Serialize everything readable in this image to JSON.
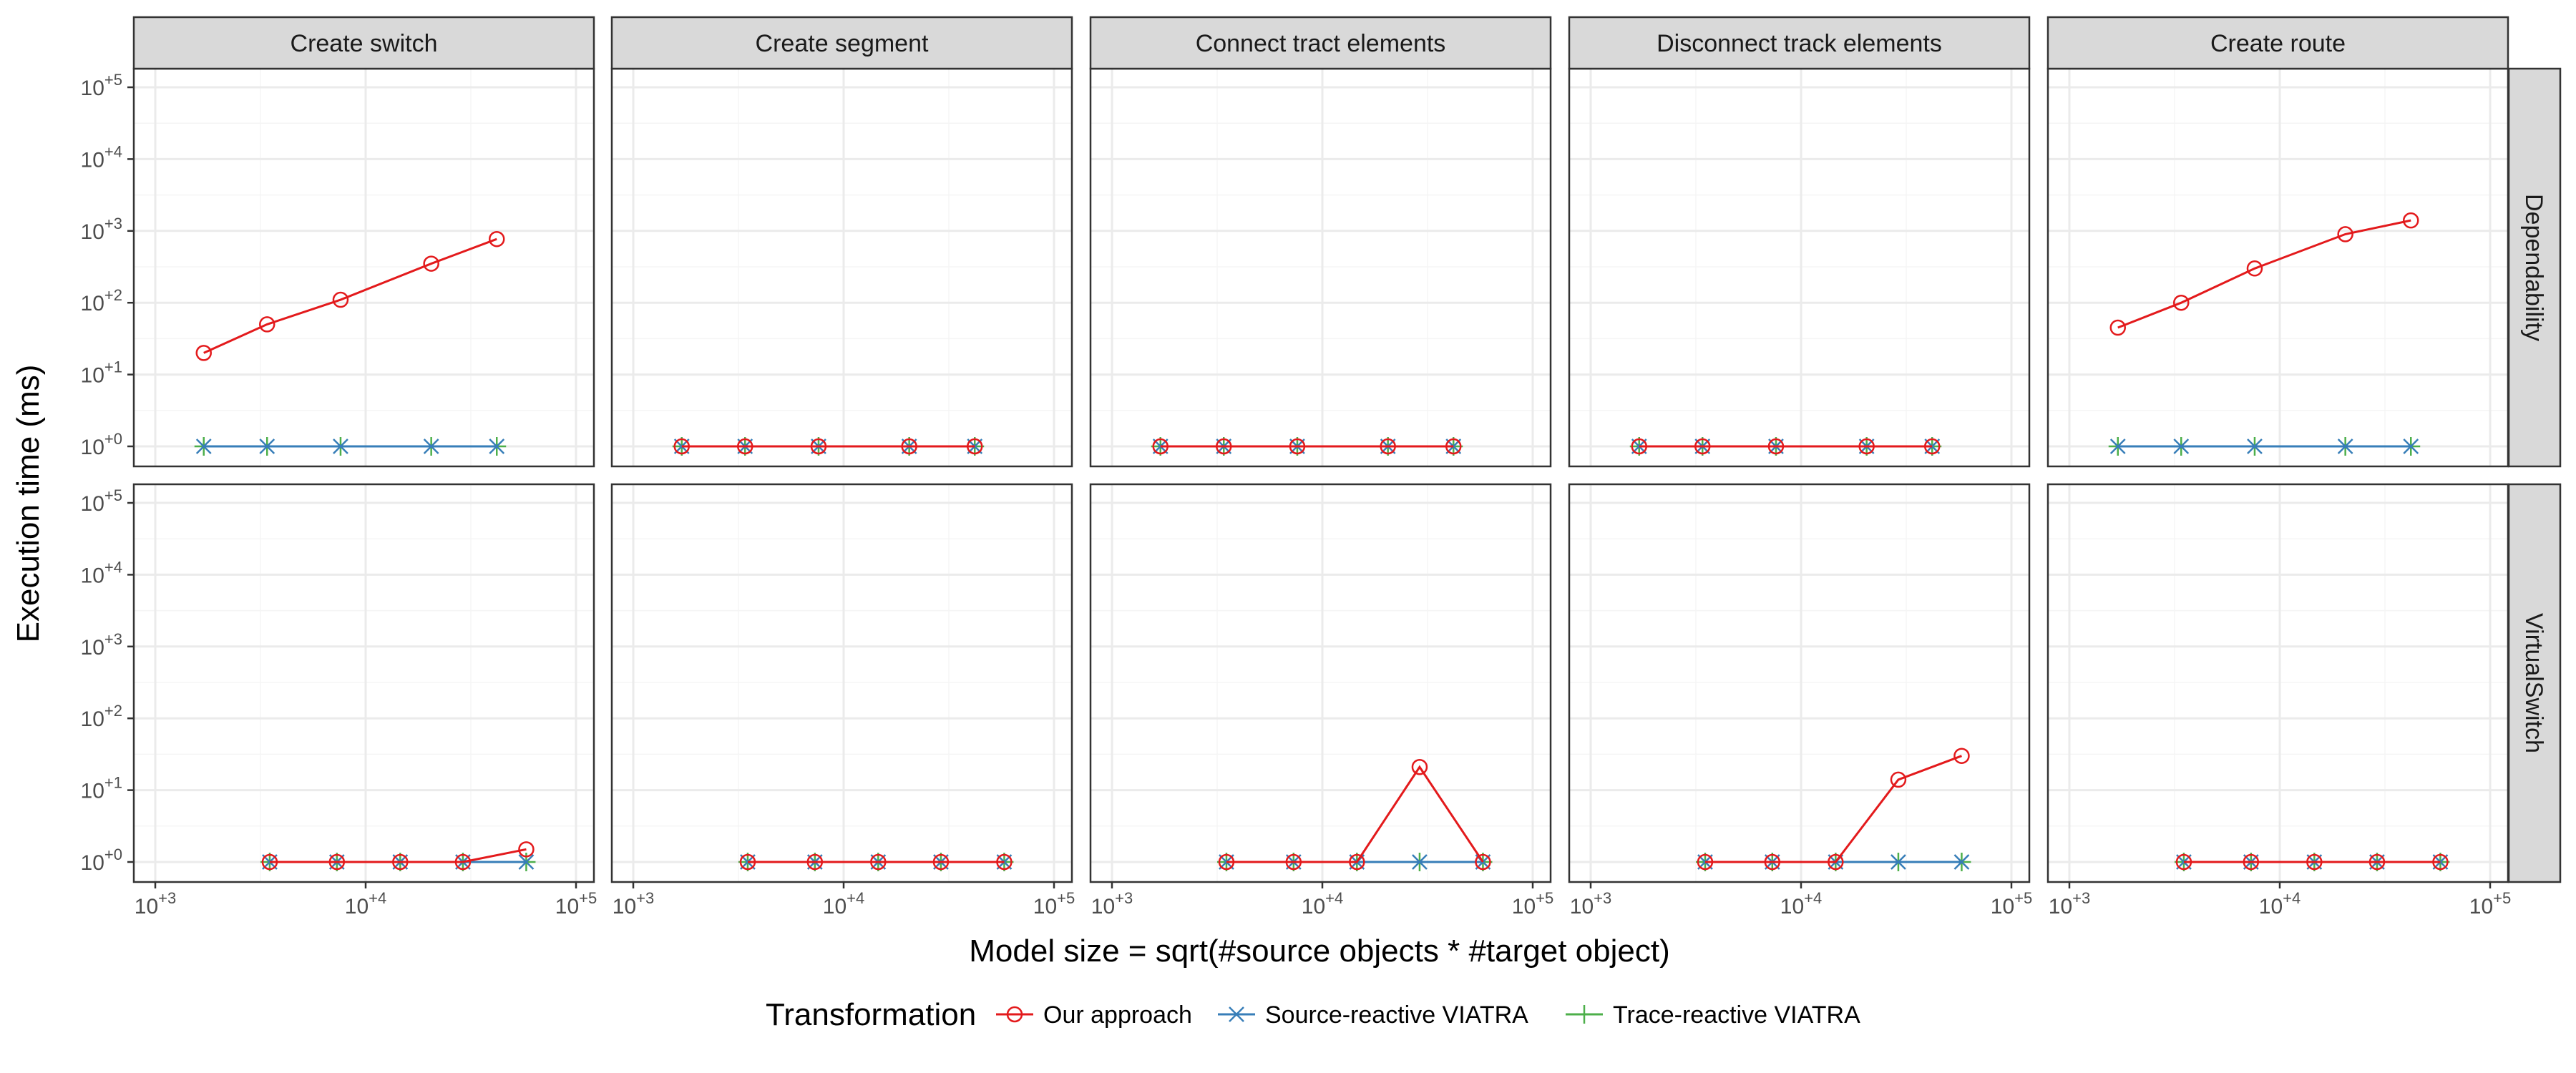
{
  "figure": {
    "y_axis_title": "Execution time (ms)",
    "x_axis_title": "Model size = sqrt(#source objects * #target object)",
    "legend_title": "Transformation"
  },
  "colors": {
    "our_approach": "#e31a1c",
    "source_reactive": "#377eb8",
    "trace_reactive": "#4daf4a",
    "panel_border": "#333333",
    "strip_fill": "#d9d9d9",
    "grid_major": "#ebebeb",
    "grid_minor": "#f5f5f5"
  },
  "chart_data": {
    "type": "line",
    "facet_columns": [
      "Create switch",
      "Create segment",
      "Connect tract elements",
      "Disconnect track elements",
      "Create route"
    ],
    "facet_rows": [
      "Dependability",
      "VirtualSwitch"
    ],
    "x_scale": "log10",
    "y_scale": "log10",
    "xlim": [
      1000,
      100000
    ],
    "ylim": [
      1,
      100000
    ],
    "x_ticks": [
      1000,
      10000,
      100000
    ],
    "x_tick_labels": [
      "10+3",
      "10+4",
      "10+5"
    ],
    "y_ticks": [
      1,
      10,
      100,
      1000,
      10000,
      100000
    ],
    "y_tick_labels": [
      "10+0",
      "10+1",
      "10+2",
      "10+3",
      "10+4",
      "10+5"
    ],
    "grid": true,
    "legend_position": "bottom",
    "series_names": [
      "Our approach",
      "Source-reactive VIATRA",
      "Trace-reactive VIATRA"
    ],
    "series_markers": [
      "circle",
      "x",
      "plus"
    ],
    "panels": [
      {
        "row": "Dependability",
        "col": "Create switch",
        "x": [
          1700,
          3400,
          7600,
          20500,
          42000
        ],
        "series": [
          {
            "name": "Our approach",
            "values": [
              20,
              50,
              110,
              350,
              770
            ]
          },
          {
            "name": "Source-reactive VIATRA",
            "values": [
              1,
              1,
              1,
              1,
              1
            ]
          },
          {
            "name": "Trace-reactive VIATRA",
            "values": [
              1,
              1,
              1,
              1,
              1
            ]
          }
        ]
      },
      {
        "row": "Dependability",
        "col": "Create segment",
        "x": [
          1700,
          3400,
          7600,
          20500,
          42000
        ],
        "series": [
          {
            "name": "Our approach",
            "values": [
              1,
              1,
              1,
              1,
              1
            ]
          },
          {
            "name": "Source-reactive VIATRA",
            "values": [
              1,
              1,
              1,
              1,
              1
            ]
          },
          {
            "name": "Trace-reactive VIATRA",
            "values": [
              1,
              1,
              1,
              1,
              1
            ]
          }
        ]
      },
      {
        "row": "Dependability",
        "col": "Connect tract elements",
        "x": [
          1700,
          3400,
          7600,
          20500,
          42000
        ],
        "series": [
          {
            "name": "Our approach",
            "values": [
              1,
              1,
              1,
              1,
              1
            ]
          },
          {
            "name": "Source-reactive VIATRA",
            "values": [
              1,
              1,
              1,
              1,
              1
            ]
          },
          {
            "name": "Trace-reactive VIATRA",
            "values": [
              1,
              1,
              1,
              1,
              1
            ]
          }
        ]
      },
      {
        "row": "Dependability",
        "col": "Disconnect track elements",
        "x": [
          1700,
          3400,
          7600,
          20500,
          42000
        ],
        "series": [
          {
            "name": "Our approach",
            "values": [
              1,
              1,
              1,
              1,
              1
            ]
          },
          {
            "name": "Source-reactive VIATRA",
            "values": [
              1,
              1,
              1,
              1,
              1
            ]
          },
          {
            "name": "Trace-reactive VIATRA",
            "values": [
              1,
              1,
              1,
              1,
              1
            ]
          }
        ]
      },
      {
        "row": "Dependability",
        "col": "Create route",
        "x": [
          1700,
          3400,
          7600,
          20500,
          42000
        ],
        "series": [
          {
            "name": "Our approach",
            "values": [
              45,
              100,
              300,
              900,
              1400
            ]
          },
          {
            "name": "Source-reactive VIATRA",
            "values": [
              1,
              1,
              1,
              1,
              1
            ]
          },
          {
            "name": "Trace-reactive VIATRA",
            "values": [
              1,
              1,
              1,
              1,
              1
            ]
          }
        ]
      },
      {
        "row": "VirtualSwitch",
        "col": "Create switch",
        "x": [
          3500,
          7300,
          14600,
          29000,
          58000
        ],
        "series": [
          {
            "name": "Our approach",
            "values": [
              1,
              1,
              1,
              1,
              1.5
            ]
          },
          {
            "name": "Source-reactive VIATRA",
            "values": [
              1,
              1,
              1,
              1,
              1
            ]
          },
          {
            "name": "Trace-reactive VIATRA",
            "values": [
              1,
              1,
              1,
              1,
              1
            ]
          }
        ]
      },
      {
        "row": "VirtualSwitch",
        "col": "Create segment",
        "x": [
          3500,
          7300,
          14600,
          29000,
          58000
        ],
        "series": [
          {
            "name": "Our approach",
            "values": [
              1,
              1,
              1,
              1,
              1
            ]
          },
          {
            "name": "Source-reactive VIATRA",
            "values": [
              1,
              1,
              1,
              1,
              1
            ]
          },
          {
            "name": "Trace-reactive VIATRA",
            "values": [
              1,
              1,
              1,
              1,
              1
            ]
          }
        ]
      },
      {
        "row": "VirtualSwitch",
        "col": "Connect tract elements",
        "x": [
          3500,
          7300,
          14600,
          29000,
          58000
        ],
        "series": [
          {
            "name": "Our approach",
            "values": [
              1,
              1,
              1,
              21,
              1
            ]
          },
          {
            "name": "Source-reactive VIATRA",
            "values": [
              1,
              1,
              1,
              1,
              1
            ]
          },
          {
            "name": "Trace-reactive VIATRA",
            "values": [
              1,
              1,
              1,
              1,
              1
            ]
          }
        ]
      },
      {
        "row": "VirtualSwitch",
        "col": "Disconnect track elements",
        "x": [
          3500,
          7300,
          14600,
          29000,
          58000
        ],
        "series": [
          {
            "name": "Our approach",
            "values": [
              1,
              1,
              1,
              14,
              30
            ]
          },
          {
            "name": "Source-reactive VIATRA",
            "values": [
              1,
              1,
              1,
              1,
              1
            ]
          },
          {
            "name": "Trace-reactive VIATRA",
            "values": [
              1,
              1,
              1,
              1,
              1
            ]
          }
        ]
      },
      {
        "row": "VirtualSwitch",
        "col": "Create route",
        "x": [
          3500,
          7300,
          14600,
          29000,
          58000
        ],
        "series": [
          {
            "name": "Our approach",
            "values": [
              1,
              1,
              1,
              1,
              1
            ]
          },
          {
            "name": "Source-reactive VIATRA",
            "values": [
              1,
              1,
              1,
              1,
              1
            ]
          },
          {
            "name": "Trace-reactive VIATRA",
            "values": [
              1,
              1,
              1,
              1,
              1
            ]
          }
        ]
      }
    ]
  }
}
